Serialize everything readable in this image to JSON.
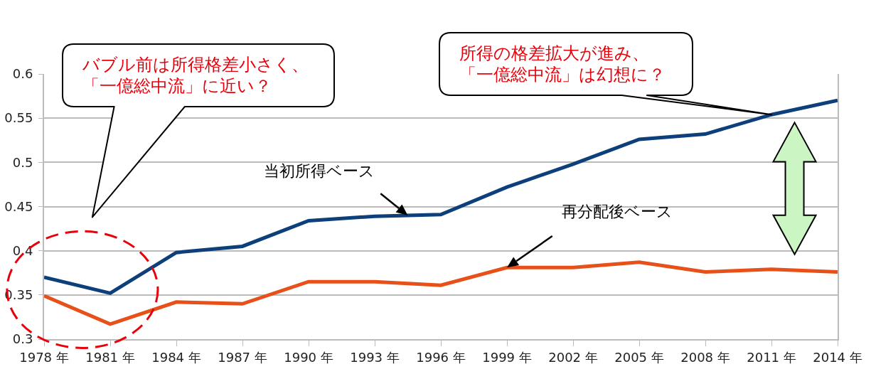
{
  "chart_data": {
    "type": "line",
    "categories": [
      "1978 年",
      "1981 年",
      "1984 年",
      "1987 年",
      "1990 年",
      "1993 年",
      "1996 年",
      "1999 年",
      "2002 年",
      "2005 年",
      "2008 年",
      "2011 年",
      "2014 年"
    ],
    "series": [
      {
        "name": "当初所得ベース",
        "color": "#0d3f7a",
        "values": [
          0.37,
          0.352,
          0.398,
          0.405,
          0.434,
          0.439,
          0.441,
          0.472,
          0.498,
          0.526,
          0.532,
          0.554,
          0.57
        ]
      },
      {
        "name": "再分配後ベース",
        "color": "#e8501a",
        "values": [
          0.349,
          0.317,
          0.342,
          0.34,
          0.365,
          0.365,
          0.361,
          0.381,
          0.381,
          0.387,
          0.376,
          0.379,
          0.376
        ]
      }
    ],
    "ylim": [
      0.3,
      0.6
    ],
    "yticks": [
      0.3,
      0.35,
      0.4,
      0.45,
      0.5,
      0.55,
      0.6
    ],
    "grid": "y",
    "legend": false,
    "marker": "none",
    "line_style": "solid",
    "annotations": [
      "バブル前は所得格差小さく、「一億総中流」に近い？",
      "所得の格差拡大が進み、「一億総中流」は幻想に？"
    ]
  }
}
